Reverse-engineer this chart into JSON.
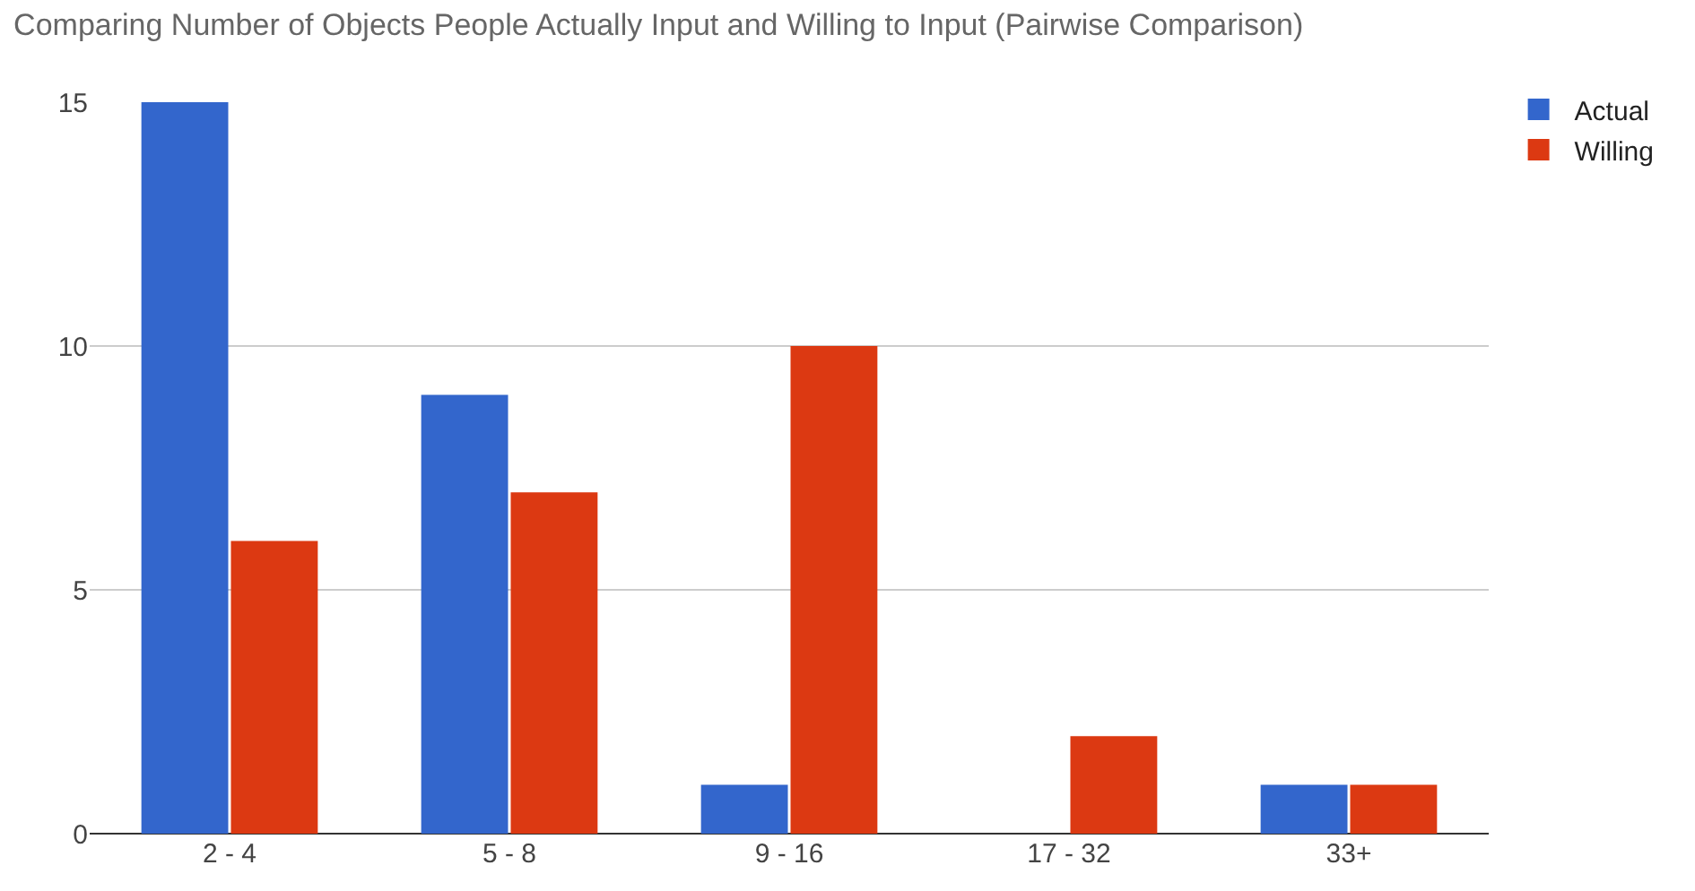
{
  "chart_data": {
    "type": "bar",
    "title": "Comparing Number of Objects People Actually Input and Willing to Input (Pairwise Comparison)",
    "categories": [
      "2 - 4",
      "5 - 8",
      "9 - 16",
      "17 - 32",
      "33+"
    ],
    "series": [
      {
        "name": "Actual",
        "color": "#3366cc",
        "values": [
          15,
          9,
          1,
          0,
          1
        ]
      },
      {
        "name": "Willing",
        "color": "#dc3912",
        "values": [
          6,
          7,
          10,
          2,
          1
        ]
      }
    ],
    "ylim": [
      0,
      15
    ],
    "yticks": [
      0,
      5,
      10,
      15
    ],
    "grid": "y",
    "legend": "top right"
  }
}
